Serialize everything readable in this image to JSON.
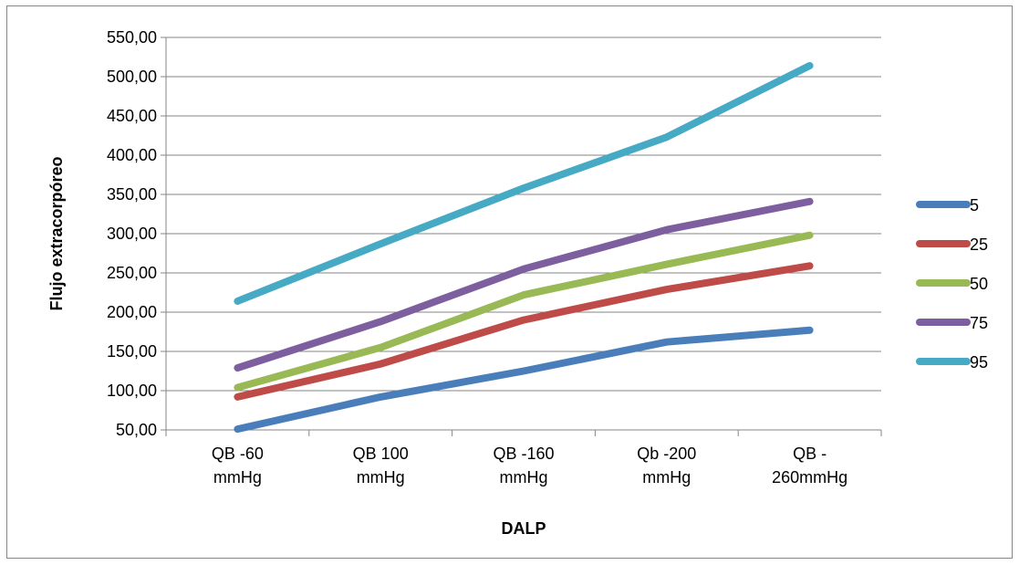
{
  "chart_data": {
    "type": "line",
    "title": "",
    "xlabel": "DALP",
    "ylabel": "Flujo extracorpóreo",
    "categories": [
      [
        "QB  -60",
        "mmHg"
      ],
      [
        "QB 100",
        "mmHg"
      ],
      [
        "QB  -160",
        "mmHg"
      ],
      [
        "Qb -200",
        "mmHg"
      ],
      [
        "QB -",
        "260mmHg"
      ]
    ],
    "ylim": [
      50,
      550
    ],
    "ytick_step": 50,
    "ytick_labels": [
      "50,00",
      "100,00",
      "150,00",
      "200,00",
      "250,00",
      "300,00",
      "350,00",
      "400,00",
      "450,00",
      "500,00",
      "550,00"
    ],
    "grid": true,
    "legend_position": "right",
    "series": [
      {
        "name": "5",
        "color": "#4a7ebb",
        "values": [
          51,
          92,
          125,
          162,
          177
        ]
      },
      {
        "name": "25",
        "color": "#be4b48",
        "values": [
          92,
          134,
          190,
          229,
          259
        ]
      },
      {
        "name": "50",
        "color": "#98b954",
        "values": [
          104,
          155,
          222,
          261,
          298
        ]
      },
      {
        "name": "75",
        "color": "#7d5fa0",
        "values": [
          129,
          188,
          255,
          305,
          341
        ]
      },
      {
        "name": "95",
        "color": "#46aac5",
        "values": [
          214,
          287,
          358,
          423,
          514
        ]
      }
    ]
  }
}
